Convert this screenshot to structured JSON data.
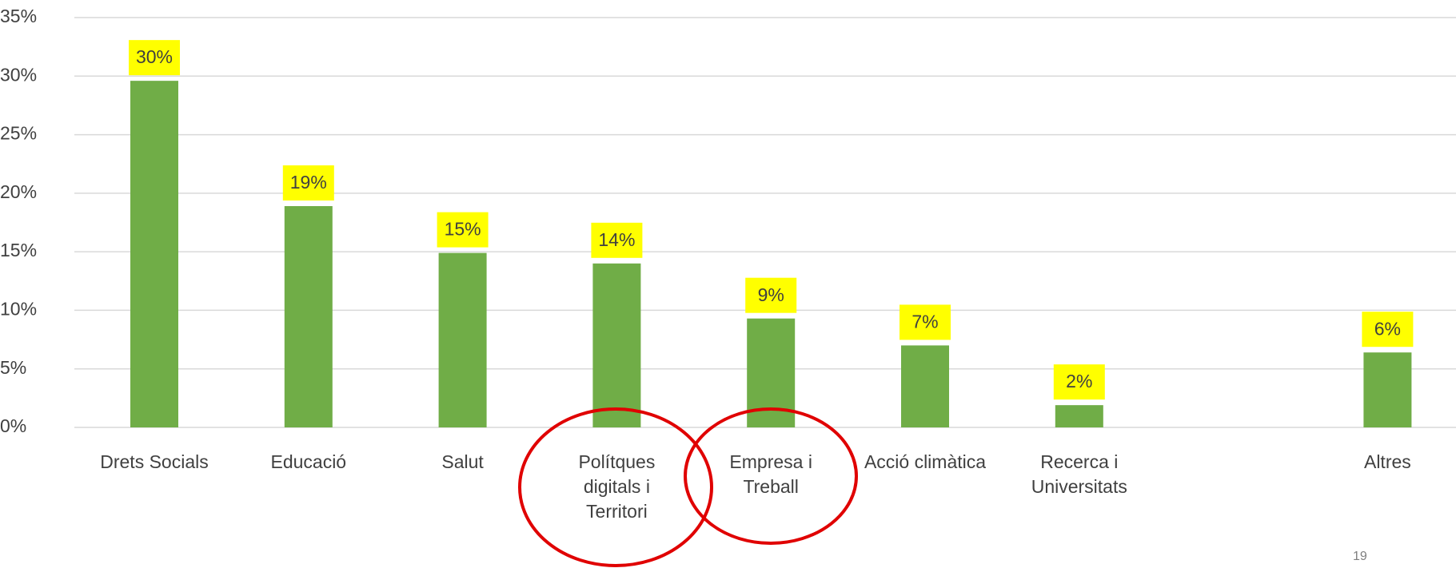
{
  "chart_data": {
    "type": "bar",
    "categories": [
      "Drets Socials",
      "Educació",
      "Salut",
      "Polítques digitals i Territori",
      "Empresa i Treball",
      "Acció climàtica",
      "Recerca i Universitats",
      null,
      "Altres"
    ],
    "values": [
      29.6,
      18.9,
      14.9,
      14.0,
      9.3,
      7.0,
      1.9,
      null,
      6.4
    ],
    "value_labels": [
      "30%",
      "19%",
      "15%",
      "14%",
      "9%",
      "7%",
      "2%",
      null,
      "6%"
    ],
    "color": "#70ad47",
    "label_background": "#ffff00",
    "ylim": [
      0,
      35
    ],
    "yticks": [
      {
        "value": 0,
        "label": "0%"
      },
      {
        "value": 5,
        "label": "5%"
      },
      {
        "value": 10,
        "label": "10%"
      },
      {
        "value": 15,
        "label": "15%"
      },
      {
        "value": 20,
        "label": "20%"
      },
      {
        "value": 25,
        "label": "25%"
      },
      {
        "value": 30,
        "label": "30%"
      },
      {
        "value": 35,
        "label": "35%"
      }
    ],
    "grid": true
  },
  "page_number": "19"
}
